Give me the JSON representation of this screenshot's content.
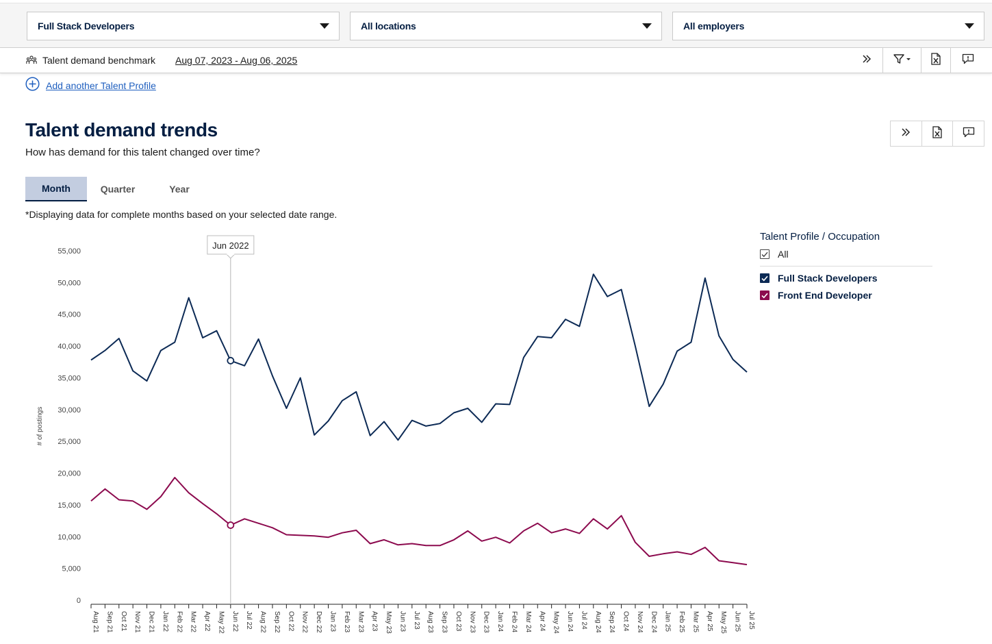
{
  "filters": {
    "occupation": "Full Stack Developers",
    "location": "All locations",
    "employer": "All employers"
  },
  "benchmark": {
    "label": "Talent demand benchmark",
    "date_range": "Aug 07, 2023 - Aug 06, 2025"
  },
  "add_profile_label": "Add another Talent Profile",
  "section": {
    "title": "Talent demand trends",
    "subtitle": "How has demand for this talent changed over time?",
    "note": "*Displaying data for complete months based on your selected date range."
  },
  "tabs": [
    "Month",
    "Quarter",
    "Year"
  ],
  "active_tab": "Month",
  "legend": {
    "heading": "Talent Profile / Occupation",
    "all_label": "All"
  },
  "icons": {
    "benchmark": "people-group-icon",
    "expand": "double-chevron-right-icon",
    "filter": "filter-icon",
    "export": "excel-export-icon",
    "feedback": "feedback-icon",
    "add": "plus-circle-icon"
  },
  "colors": {
    "navy": "#041e42",
    "full_stack": "#0c2a55",
    "front_end": "#8c0a4e",
    "link": "#1f5fbf",
    "tab_active": "#c3cde0"
  },
  "chart_data": {
    "type": "line",
    "ylabel": "# of postings",
    "ylim": [
      0,
      55000
    ],
    "yticks": [
      0,
      5000,
      10000,
      15000,
      20000,
      25000,
      30000,
      35000,
      40000,
      45000,
      50000,
      55000
    ],
    "tooltip": {
      "label": "Jun 2022",
      "x": "Jun 22"
    },
    "x": [
      "Aug 21",
      "Sep 21",
      "Oct 21",
      "Nov 21",
      "Dec 21",
      "Jan 22",
      "Feb 22",
      "Mar 22",
      "Apr 22",
      "May 22",
      "Jun 22",
      "Jul 22",
      "Aug 22",
      "Sep 22",
      "Oct 22",
      "Nov 22",
      "Dec 22",
      "Jan 23",
      "Feb 23",
      "Mar 23",
      "Apr 23",
      "May 23",
      "Jun 23",
      "Jul 23",
      "Aug 23",
      "Sep 23",
      "Oct 23",
      "Nov 23",
      "Dec 23",
      "Jan 24",
      "Feb 24",
      "Mar 24",
      "Apr 24",
      "May 24",
      "Jun 24",
      "Jul 24",
      "Aug 24",
      "Sep 24",
      "Oct 24",
      "Nov 24",
      "Dec 24",
      "Jan 25",
      "Feb 25",
      "Mar 25",
      "Apr 25",
      "May 25",
      "Jun 25",
      "Jul 25"
    ],
    "series": [
      {
        "name": "Full Stack Developers",
        "color": "#0c2a55",
        "values": [
          37800,
          39300,
          41200,
          36100,
          34500,
          39300,
          40600,
          47600,
          41300,
          42400,
          37700,
          36900,
          41100,
          35300,
          30200,
          35000,
          26000,
          28200,
          31400,
          32800,
          25900,
          28100,
          25200,
          28300,
          27400,
          27800,
          29500,
          30200,
          28000,
          30900,
          30800,
          38200,
          41500,
          41300,
          44200,
          43100,
          51300,
          47800,
          48900,
          40000,
          30500,
          34000,
          39200,
          40600,
          50700,
          41600,
          37900,
          35900
        ]
      },
      {
        "name": "Front End Developer",
        "color": "#8c0a4e",
        "values": [
          15600,
          17500,
          15800,
          15600,
          14300,
          16300,
          19300,
          16900,
          15200,
          13600,
          11800,
          12800,
          12100,
          11400,
          10300,
          10200,
          10100,
          9900,
          10600,
          11000,
          8900,
          9500,
          8700,
          8900,
          8600,
          8600,
          9500,
          10900,
          9300,
          9900,
          9000,
          10900,
          12100,
          10600,
          11200,
          10500,
          12800,
          11200,
          13300,
          9100,
          6900,
          7300,
          7600,
          7200,
          8300,
          6200,
          5900,
          5600
        ]
      }
    ]
  }
}
